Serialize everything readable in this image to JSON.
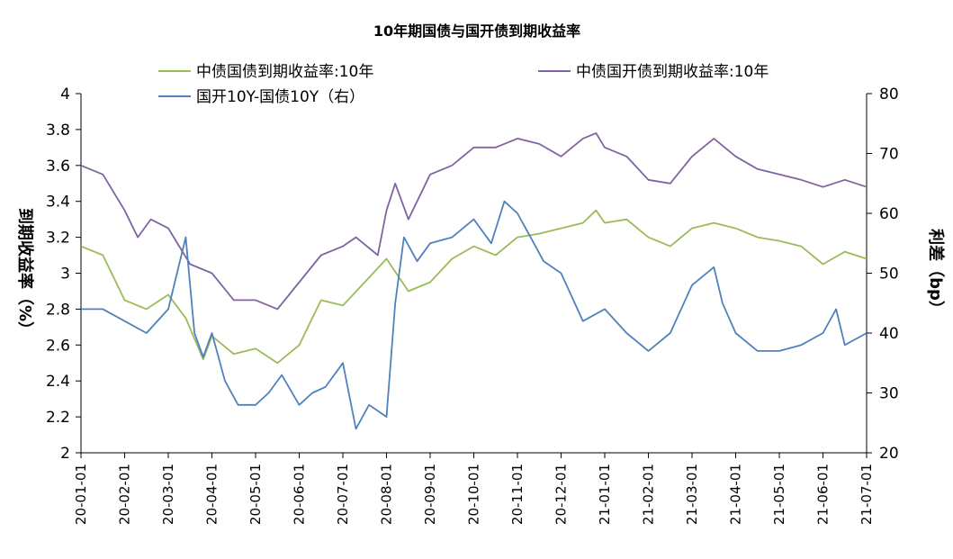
{
  "chart_data": {
    "type": "line",
    "title": "10年期国债与国开债到期收益率",
    "ylabel_left": "到期收益率（%）",
    "ylabel_right": "利差（bp）",
    "ylim_left": [
      2,
      4
    ],
    "yticks_left": [
      "2",
      "2.2",
      "2.4",
      "2.6",
      "2.8",
      "3",
      "3.2",
      "3.4",
      "3.6",
      "3.8",
      "4"
    ],
    "ylim_right": [
      20,
      80
    ],
    "yticks_right": [
      "20",
      "30",
      "40",
      "50",
      "60",
      "70",
      "80"
    ],
    "x_ticks": [
      "20-01-01",
      "20-02-01",
      "20-03-01",
      "20-04-01",
      "20-05-01",
      "20-06-01",
      "20-07-01",
      "20-08-01",
      "20-09-01",
      "20-10-01",
      "20-11-01",
      "20-12-01",
      "21-01-01",
      "21-02-01",
      "21-03-01",
      "21-04-01",
      "21-05-01",
      "21-06-01",
      "21-07-01"
    ],
    "series": [
      {
        "name": "中债国债到期收益率:10年",
        "axis": "left",
        "color": "#9bbb59",
        "x": [
          0,
          0.5,
          1,
          1.5,
          2,
          2.4,
          2.8,
          3,
          3.5,
          4,
          4.5,
          5,
          5.5,
          6,
          6.5,
          7,
          7.5,
          8,
          8.5,
          9,
          9.5,
          10,
          10.5,
          11,
          11.5,
          11.8,
          12,
          12.5,
          13,
          13.5,
          14,
          14.5,
          15,
          15.5,
          16,
          16.5,
          17,
          17.5,
          18
        ],
        "values": [
          3.15,
          3.1,
          2.85,
          2.8,
          2.88,
          2.75,
          2.52,
          2.65,
          2.55,
          2.58,
          2.5,
          2.6,
          2.85,
          2.82,
          2.95,
          3.08,
          2.9,
          2.95,
          3.08,
          3.15,
          3.1,
          3.2,
          3.22,
          3.25,
          3.28,
          3.35,
          3.28,
          3.3,
          3.2,
          3.15,
          3.25,
          3.28,
          3.25,
          3.2,
          3.18,
          3.15,
          3.05,
          3.12,
          3.08
        ]
      },
      {
        "name": "中债国开债到期收益率:10年",
        "axis": "left",
        "color": "#8064a2",
        "x": [
          0,
          0.5,
          1,
          1.3,
          1.6,
          2,
          2.5,
          3,
          3.5,
          4,
          4.5,
          5,
          5.5,
          6,
          6.3,
          6.8,
          7,
          7.2,
          7.5,
          8,
          8.5,
          9,
          9.5,
          10,
          10.5,
          11,
          11.5,
          11.8,
          12,
          12.5,
          13,
          13.5,
          14,
          14.5,
          15,
          15.5,
          16,
          16.5,
          17,
          17.5,
          18
        ],
        "values": [
          3.6,
          3.55,
          3.35,
          3.2,
          3.3,
          3.25,
          3.05,
          3.0,
          2.85,
          2.85,
          2.8,
          2.95,
          3.1,
          3.15,
          3.2,
          3.1,
          3.35,
          3.5,
          3.3,
          3.55,
          3.6,
          3.7,
          3.7,
          3.75,
          3.72,
          3.65,
          3.75,
          3.78,
          3.7,
          3.65,
          3.52,
          3.5,
          3.65,
          3.75,
          3.65,
          3.58,
          3.55,
          3.52,
          3.48,
          3.52,
          3.48
        ]
      },
      {
        "name": "国开10Y-国债10Y（右）",
        "axis": "right",
        "color": "#4f81bd",
        "x": [
          0,
          0.5,
          1,
          1.5,
          2,
          2.2,
          2.4,
          2.6,
          2.8,
          3,
          3.3,
          3.6,
          4,
          4.3,
          4.6,
          5,
          5.3,
          5.6,
          6,
          6.3,
          6.6,
          7,
          7.2,
          7.4,
          7.7,
          8,
          8.5,
          9,
          9.4,
          9.7,
          10,
          10.3,
          10.6,
          11,
          11.5,
          12,
          12.5,
          13,
          13.5,
          14,
          14.5,
          14.7,
          15,
          15.5,
          16,
          16.5,
          17,
          17.3,
          17.5,
          18
        ],
        "values": [
          44,
          44,
          42,
          40,
          44,
          50,
          56,
          40,
          36,
          40,
          32,
          28,
          28,
          30,
          33,
          28,
          30,
          31,
          35,
          24,
          28,
          26,
          45,
          56,
          52,
          55,
          56,
          59,
          55,
          62,
          60,
          56,
          52,
          50,
          42,
          44,
          40,
          37,
          40,
          48,
          51,
          45,
          40,
          37,
          37,
          38,
          40,
          44,
          38,
          40
        ]
      }
    ]
  }
}
